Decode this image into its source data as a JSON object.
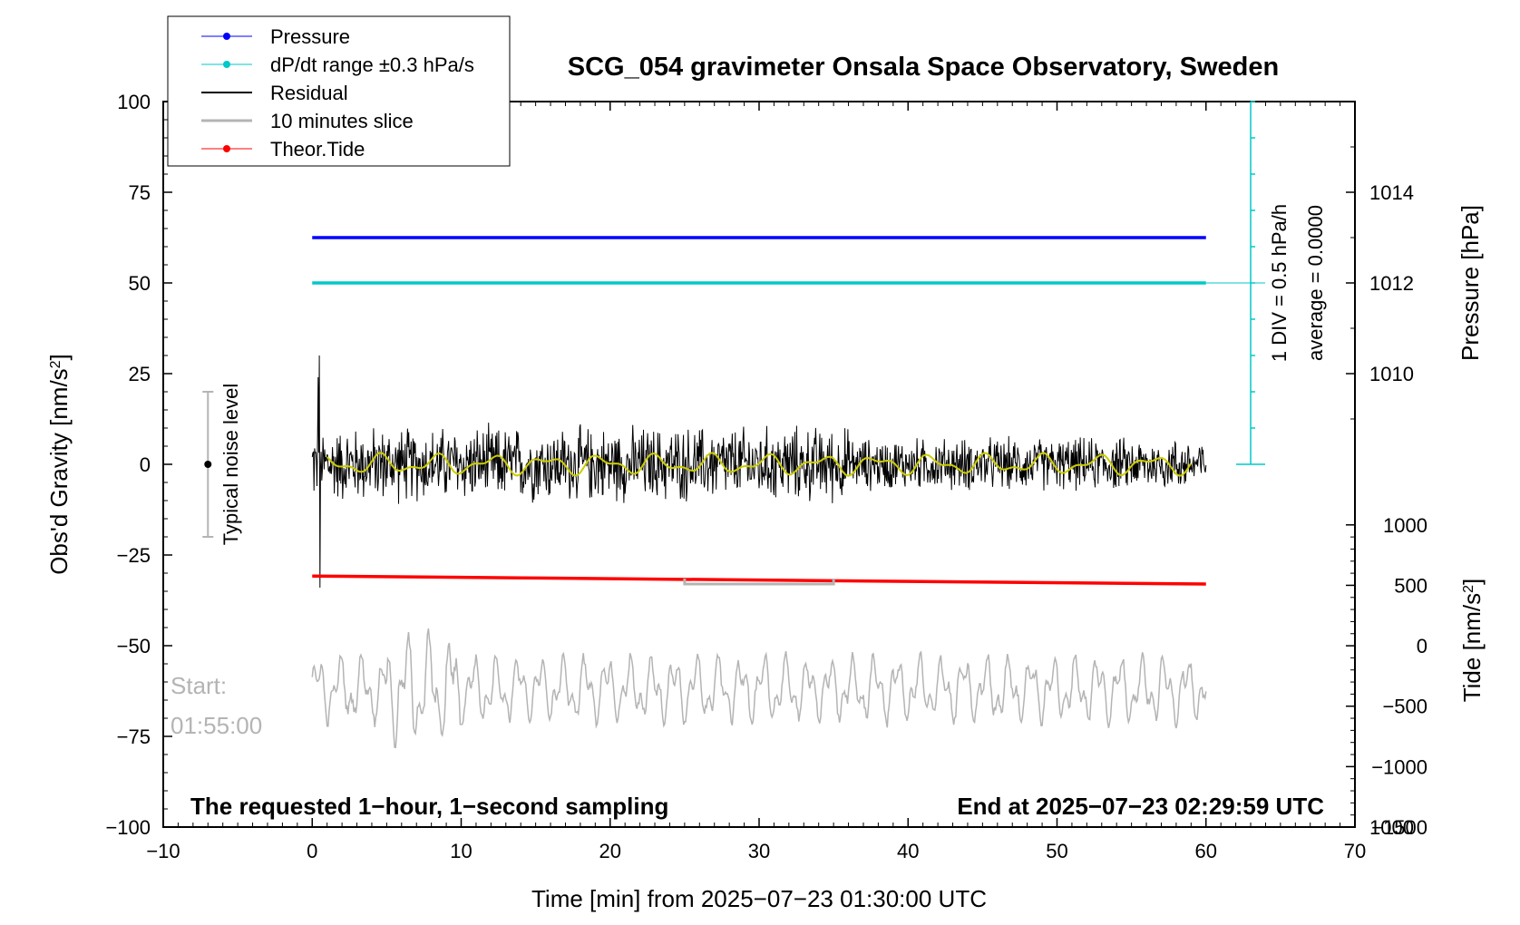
{
  "chart_data": {
    "type": "line",
    "title": "SCG_054 gravimeter Onsala Space Observatory, Sweden",
    "xlabel": "Time [min] from 2025−07−23 01:30:00 UTC",
    "ylabel_left": "Obs'd Gravity [nm/s",
    "ylabel_left_sup": "2",
    "ylabel_left_tail": "]",
    "ylabel_right_pressure": "Pressure [hPa]",
    "ylabel_right_tide": "Tide [nm/s",
    "ylabel_right_tide_sup": "2",
    "ylabel_right_tide_tail": "]",
    "xlim": [
      -10,
      70
    ],
    "ylim": [
      -100,
      100
    ],
    "x_ticks": [
      "−10",
      "0",
      "10",
      "20",
      "30",
      "40",
      "50",
      "60",
      "70"
    ],
    "x_tick_values": [
      -10,
      0,
      10,
      20,
      30,
      40,
      50,
      60,
      70
    ],
    "y_ticks": [
      "100",
      "75",
      "50",
      "25",
      "0",
      "−25",
      "−50",
      "−75",
      "−100"
    ],
    "y_tick_values": [
      100,
      75,
      50,
      25,
      0,
      -25,
      -50,
      -75,
      -100
    ],
    "pressure_ticks": [
      {
        "label": "1014",
        "value": 1014
      },
      {
        "label": "1012",
        "value": 1012
      },
      {
        "label": "1010",
        "value": 1010
      },
      {
        "label": "1000",
        "value": 1000
      }
    ],
    "pressure_axis_map": {
      "hpa_at_gravity_75": 1014,
      "hpa_at_gravity_50": 1012
    },
    "tide_ticks": [
      {
        "label": "1000",
        "value": 1000
      },
      {
        "label": "500",
        "value": 500
      },
      {
        "label": "0",
        "value": 0
      },
      {
        "label": "−500",
        "value": -500
      },
      {
        "label": "−1000",
        "value": -1000
      },
      {
        "label": "−1500",
        "value": -1500
      }
    ],
    "tide_axis_range": [
      1000,
      -1500
    ],
    "series": [
      {
        "name": "Pressure",
        "color": "#0000ff",
        "x": [
          0,
          60
        ],
        "y_gravity_units": [
          62.5,
          62.5
        ]
      },
      {
        "name": "dP/dt range ±0.3 hPa/s",
        "color": "#00c8c8",
        "x": [
          0,
          60
        ],
        "y_gravity_units": [
          50,
          50
        ]
      },
      {
        "name": "Residual",
        "color": "#000000",
        "x_range": [
          0,
          60
        ],
        "typical_amplitude": 8,
        "peak_max": 30,
        "peak_min": -34
      },
      {
        "name": "10 minutes slice",
        "color": "#b4b4b4",
        "x_range": [
          0,
          60
        ],
        "center": -62,
        "typical_amplitude": 10
      },
      {
        "name": "Theor.Tide",
        "color": "#ff0000",
        "x": [
          0,
          60
        ],
        "y_gravity_units": [
          -30.8,
          -33
        ]
      }
    ],
    "residual_smoothed_color": "#cccc00",
    "slice_bracket_x": [
      25,
      35
    ],
    "slice_bracket_y": -33,
    "noise_level": {
      "label": "Typical noise level",
      "x": -7,
      "y_range": [
        -20,
        20
      ]
    },
    "dpdt_scale": {
      "label_div": "1 DIV = 0.5 hPa/h",
      "label_avg": "average = 0.0000",
      "x": 63,
      "y_range": [
        0,
        100
      ],
      "divisions": 10
    },
    "start_label": "Start:",
    "start_time": "01:55:00",
    "bottom_left_text": "The requested 1−hour, 1−second sampling",
    "bottom_right_text": "End at 2025−07−23 02:29:59 UTC",
    "legend_placement": "top-left",
    "grid": false
  },
  "colors": {
    "pressure": "#0000ff",
    "dpdt": "#00c8c8",
    "residual": "#000000",
    "slice": "#b4b4b4",
    "tide": "#ff0000",
    "smoothed": "#cccc00",
    "noise": "#b4b4b4"
  }
}
